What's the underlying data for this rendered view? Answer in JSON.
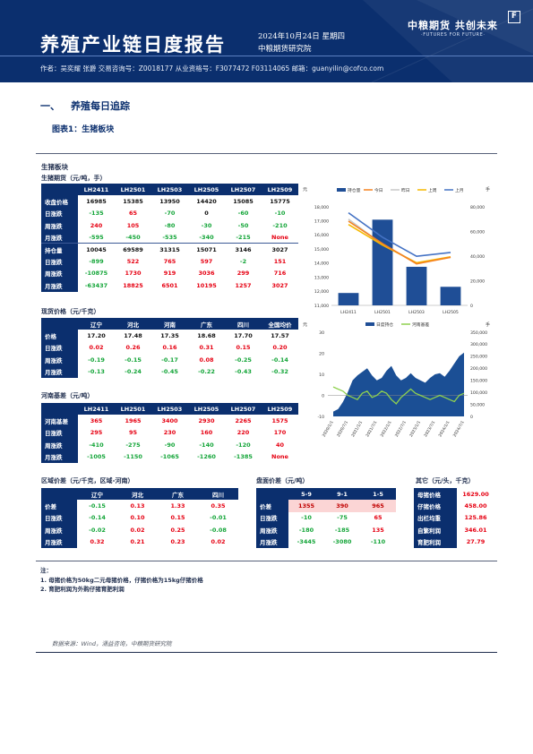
{
  "header": {
    "title": "养殖产业链日度报告",
    "date": "2024年10月24日 星期四",
    "institute": "中粮期货研究院",
    "logo_cn": "中粮期货 共创未来",
    "logo_en": "·FUTURES FOR FUTURE·",
    "logo_mark": "F",
    "authors": "作者：吴奕耀 张爵  交易咨询号：Z0018177 从业资格号：F3077472 F03114065  邮箱：guanyilin@cofco.com"
  },
  "section": {
    "number": "一、",
    "title": "养殖每日追踪"
  },
  "figure_title": "图表1：生猪板块",
  "panel_title": "生猪板块",
  "futures": {
    "label": "生猪期货（元/吨，手）",
    "headers": [
      "",
      "LH2411",
      "LH2501",
      "LH2503",
      "LH2505",
      "LH2507",
      "LH2509"
    ],
    "rows": [
      {
        "label": "收盘价格",
        "cells": [
          "16985",
          "15385",
          "13950",
          "14420",
          "15085",
          "15775"
        ],
        "tone": [
          "bk",
          "bk",
          "bk",
          "bk",
          "bk",
          "bk"
        ]
      },
      {
        "label": "日涨跌",
        "cells": [
          "-135",
          "65",
          "-70",
          "0",
          "-60",
          "-10"
        ],
        "tone": [
          "gn",
          "rd",
          "gn",
          "bk",
          "gn",
          "gn"
        ]
      },
      {
        "label": "周涨跌",
        "cells": [
          "240",
          "105",
          "-80",
          "-30",
          "-50",
          "-210"
        ],
        "tone": [
          "rd",
          "rd",
          "gn",
          "gn",
          "gn",
          "gn"
        ]
      },
      {
        "label": "月涨跌",
        "cells": [
          "-595",
          "-450",
          "-535",
          "-340",
          "-215",
          "None"
        ],
        "tone": [
          "gn",
          "gn",
          "gn",
          "gn",
          "gn",
          "rd"
        ]
      },
      {
        "label": "持仓量",
        "cells": [
          "10045",
          "69589",
          "31315",
          "15071",
          "3146",
          "3027"
        ],
        "tone": [
          "bk",
          "bk",
          "bk",
          "bk",
          "bk",
          "bk"
        ]
      },
      {
        "label": "日涨跌",
        "cells": [
          "-899",
          "522",
          "765",
          "597",
          "-2",
          "151"
        ],
        "tone": [
          "gn",
          "rd",
          "rd",
          "rd",
          "gn",
          "rd"
        ]
      },
      {
        "label": "周涨跌",
        "cells": [
          "-10875",
          "1730",
          "919",
          "3036",
          "299",
          "716"
        ],
        "tone": [
          "gn",
          "rd",
          "rd",
          "rd",
          "rd",
          "rd"
        ]
      },
      {
        "label": "月涨跌",
        "cells": [
          "-63437",
          "18825",
          "6501",
          "10195",
          "1257",
          "3027"
        ],
        "tone": [
          "gn",
          "rd",
          "rd",
          "rd",
          "rd",
          "rd"
        ]
      }
    ]
  },
  "spot": {
    "label": "现货价格（元/千克）",
    "headers": [
      "",
      "辽宁",
      "河北",
      "河南",
      "广东",
      "四川",
      "全国均价"
    ],
    "rows": [
      {
        "label": "价格",
        "cells": [
          "17.20",
          "17.48",
          "17.35",
          "18.68",
          "17.70",
          "17.57"
        ],
        "tone": [
          "bk",
          "bk",
          "bk",
          "bk",
          "bk",
          "bk"
        ]
      },
      {
        "label": "日涨跌",
        "cells": [
          "0.02",
          "0.26",
          "0.16",
          "0.31",
          "0.15",
          "0.20"
        ],
        "tone": [
          "rd",
          "rd",
          "rd",
          "rd",
          "rd",
          "rd"
        ]
      },
      {
        "label": "周涨跌",
        "cells": [
          "-0.19",
          "-0.15",
          "-0.17",
          "0.08",
          "-0.25",
          "-0.14"
        ],
        "tone": [
          "gn",
          "gn",
          "gn",
          "rd",
          "gn",
          "gn"
        ]
      },
      {
        "label": "月涨跌",
        "cells": [
          "-0.13",
          "-0.24",
          "-0.45",
          "-0.22",
          "-0.43",
          "-0.32"
        ],
        "tone": [
          "gn",
          "gn",
          "gn",
          "gn",
          "gn",
          "gn"
        ]
      }
    ]
  },
  "basis": {
    "label": "河南基差（元/吨）",
    "headers": [
      "",
      "LH2411",
      "LH2501",
      "LH2503",
      "LH2505",
      "LH2507",
      "LH2509"
    ],
    "rows": [
      {
        "label": "河南基差",
        "cells": [
          "365",
          "1965",
          "3400",
          "2930",
          "2265",
          "1575"
        ],
        "tone": [
          "rd",
          "rd",
          "rd",
          "rd",
          "rd",
          "rd"
        ]
      },
      {
        "label": "日涨跌",
        "cells": [
          "295",
          "95",
          "230",
          "160",
          "220",
          "170"
        ],
        "tone": [
          "rd",
          "rd",
          "rd",
          "rd",
          "rd",
          "rd"
        ]
      },
      {
        "label": "周涨跌",
        "cells": [
          "-410",
          "-275",
          "-90",
          "-140",
          "-120",
          "40"
        ],
        "tone": [
          "gn",
          "gn",
          "gn",
          "gn",
          "gn",
          "rd"
        ]
      },
      {
        "label": "月涨跌",
        "cells": [
          "-1005",
          "-1150",
          "-1065",
          "-1260",
          "-1385",
          "None"
        ],
        "tone": [
          "gn",
          "gn",
          "gn",
          "gn",
          "gn",
          "rd"
        ]
      }
    ]
  },
  "regional": {
    "label": "区域价差（元/千克，区域-河南）",
    "headers": [
      "",
      "辽宁",
      "河北",
      "广东",
      "四川"
    ],
    "rows": [
      {
        "label": "价差",
        "cells": [
          "-0.15",
          "0.13",
          "1.33",
          "0.35"
        ],
        "tone": [
          "gn",
          "rd",
          "rd",
          "rd"
        ]
      },
      {
        "label": "日涨跌",
        "cells": [
          "-0.14",
          "0.10",
          "0.15",
          "-0.01"
        ],
        "tone": [
          "gn",
          "rd",
          "rd",
          "gn"
        ]
      },
      {
        "label": "周涨跌",
        "cells": [
          "-0.02",
          "0.02",
          "0.25",
          "-0.08"
        ],
        "tone": [
          "gn",
          "rd",
          "rd",
          "gn"
        ]
      },
      {
        "label": "月涨跌",
        "cells": [
          "0.32",
          "0.21",
          "0.23",
          "0.02"
        ],
        "tone": [
          "rd",
          "rd",
          "rd",
          "rd"
        ]
      }
    ]
  },
  "spread": {
    "label": "盘面价差（元/吨）",
    "headers": [
      "",
      "5-9",
      "9-1",
      "1-5"
    ],
    "rows": [
      {
        "label": "价差",
        "cells": [
          "1355",
          "390",
          "965"
        ],
        "tone": [
          "rdc",
          "rdc",
          "rdc"
        ]
      },
      {
        "label": "日涨跌",
        "cells": [
          "-10",
          "-75",
          "65"
        ],
        "tone": [
          "gn",
          "gn",
          "rd"
        ]
      },
      {
        "label": "周涨跌",
        "cells": [
          "-180",
          "-185",
          "135"
        ],
        "tone": [
          "gn",
          "gn",
          "rd"
        ]
      },
      {
        "label": "月涨跌",
        "cells": [
          "-3445",
          "-3080",
          "-110"
        ],
        "tone": [
          "gn",
          "gn",
          "gn"
        ]
      }
    ]
  },
  "others": {
    "label": "其它（元/头，千克）",
    "rows": [
      {
        "label": "母猪价格",
        "value": "1629.00"
      },
      {
        "label": "仔猪价格",
        "value": "458.00"
      },
      {
        "label": "出栏均重",
        "value": "125.86"
      },
      {
        "label": "自繁利润",
        "value": "346.01"
      },
      {
        "label": "育肥利润",
        "value": "27.79"
      }
    ]
  },
  "notes": [
    "注：",
    "1. 母猪价格为50kg二元母猪价格，仔猪价格为15kg仔猪价格",
    "2. 育肥利润为外购仔猪育肥利润"
  ],
  "source": "数据来源：Wind，涌益咨询，中粮期货研究院",
  "colors": {
    "navy": "#0b2f6e",
    "bar": "#1f4e96",
    "red": "#e60012",
    "green": "#13a538",
    "today": "#f58220",
    "prev_day": "#c9c9c9",
    "prev_week": "#f5b800",
    "prev_month": "#4472c4",
    "basis_line": "#8fd14f"
  },
  "chart_data": [
    {
      "type": "bar",
      "name": "futures-curve",
      "categories": [
        "LH2411",
        "LH2501",
        "LH2503",
        "LH2505"
      ],
      "left_unit": "元",
      "right_unit": "手",
      "series": [
        {
          "name": "持仓量",
          "type": "bar",
          "axis": "right",
          "values": [
            10045,
            69589,
            31315,
            15071
          ]
        },
        {
          "name": "今日",
          "type": "line",
          "axis": "left",
          "values": [
            16985,
            15385,
            13950,
            14420
          ]
        },
        {
          "name": "昨日",
          "type": "line",
          "axis": "left",
          "values": [
            17120,
            15320,
            14020,
            14420
          ]
        },
        {
          "name": "上周",
          "type": "line",
          "axis": "left",
          "values": [
            16745,
            15280,
            14030,
            14450
          ]
        },
        {
          "name": "上月",
          "type": "line",
          "axis": "left",
          "values": [
            17580,
            15835,
            14485,
            14760
          ]
        }
      ],
      "ylim_left": [
        11000,
        18000
      ],
      "yticks_left": [
        "11,000",
        "12,000",
        "13,000",
        "14,000",
        "15,000",
        "16,000",
        "17,000",
        "18,000"
      ],
      "ylim_right": [
        0,
        80000
      ],
      "yticks_right": [
        "0",
        "20,000",
        "40,000",
        "60,000",
        "80,000"
      ],
      "legend_position": "top"
    },
    {
      "type": "area",
      "name": "basis-history",
      "left_unit": "元",
      "right_unit": "手",
      "x_ticks": [
        "2020/1/1",
        "2020/7/1",
        "2021/1/1",
        "2021/7/1",
        "2022/1/1",
        "2022/7/1",
        "2023/1/1",
        "2023/7/1",
        "2024/1/1",
        "2024/7/1"
      ],
      "series": [
        {
          "name": "日度持仓",
          "type": "area",
          "axis": "right",
          "values": [
            20000,
            30000,
            60000,
            100000,
            150000,
            170000,
            185000,
            200000,
            170000,
            150000,
            160000,
            190000,
            210000,
            170000,
            150000,
            160000,
            180000,
            160000,
            150000,
            140000,
            160000,
            175000,
            180000,
            165000,
            190000,
            220000,
            250000,
            265000
          ]
        },
        {
          "name": "河南基差",
          "type": "line",
          "axis": "left",
          "values": [
            4,
            3,
            2,
            0,
            -1,
            -2,
            1,
            2,
            -1,
            0,
            2,
            1,
            -2,
            -4,
            -1,
            1,
            3,
            1,
            0,
            -1,
            -2,
            -1,
            0,
            -1,
            -2,
            -3,
            0,
            1
          ]
        }
      ],
      "ylim_left": [
        -10,
        30
      ],
      "yticks_left": [
        "-10",
        "0",
        "10",
        "20",
        "30"
      ],
      "ylim_right": [
        0,
        350000
      ],
      "yticks_right": [
        "0",
        "50,000",
        "100,000",
        "150,000",
        "200,000",
        "250,000",
        "300,000",
        "350,000"
      ],
      "legend_position": "top"
    }
  ]
}
